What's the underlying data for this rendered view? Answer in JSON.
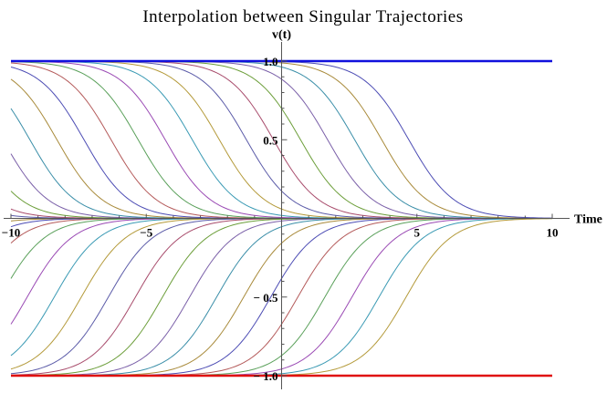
{
  "chart_data": {
    "type": "line",
    "title": "Interpolation between Singular Trajectories",
    "xlabel": "Time",
    "ylabel": "v(t)",
    "xlim": [
      -10,
      10
    ],
    "ylim": [
      -1.05,
      1.05
    ],
    "x_ticks": [
      -10,
      -5,
      5,
      10
    ],
    "x_tick_labels": [
      "−10",
      "−5",
      "5",
      "10"
    ],
    "y_ticks": [
      1.0,
      0.5,
      -0.5,
      -1.0
    ],
    "y_tick_labels": [
      "1.0",
      "0.5",
      "− 0.5",
      "− 1.0"
    ],
    "grid": false,
    "legend": "none",
    "curve_model": "v(t) = ± 1 / (1 + exp(1.2 (t − c)))",
    "decreasing_series_midpoints": [
      -13.3,
      -12.3,
      -11.3,
      -10.3,
      -9.3,
      -8.3,
      -7.3,
      -6.3,
      -5.3,
      -4.3,
      -3.3,
      -2.3,
      -1.3,
      -0.3,
      0.7,
      1.7,
      2.7,
      3.7,
      4.7
    ],
    "increasing_series_midpoints": [
      -13.4,
      -12.4,
      -11.4,
      -10.4,
      -9.4,
      -8.4,
      -7.4,
      -6.4,
      -5.4,
      -4.4,
      -3.4,
      -2.4,
      -1.4,
      -0.4,
      0.6,
      1.6,
      2.6,
      3.6,
      4.6
    ],
    "constant_series": [
      {
        "value": 1.0,
        "color": "#1010dd"
      },
      {
        "value": -1.0,
        "color": "#e01010"
      }
    ],
    "series_colors": [
      "#5b5ba8",
      "#a84c6c",
      "#6c9e3a",
      "#7a5fa8",
      "#3a8ea8",
      "#a88a3a",
      "#4c4cb4",
      "#b45a5a",
      "#5aa05a",
      "#9a4ab4",
      "#3a9ab4",
      "#b49a3a"
    ]
  }
}
